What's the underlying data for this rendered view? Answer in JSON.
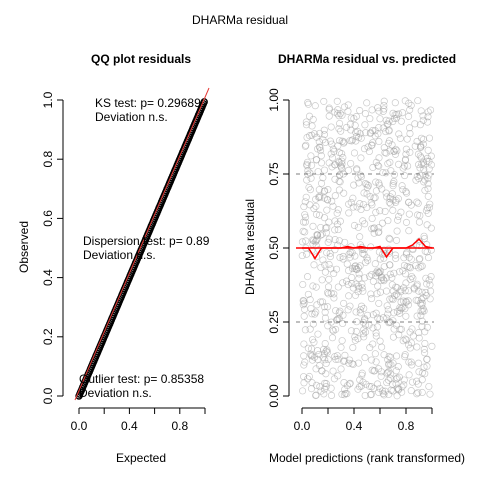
{
  "figure": {
    "title": "DHARMa residual"
  },
  "chart_data": [
    {
      "type": "scatter",
      "title": "QQ plot residuals",
      "xlabel": "Expected",
      "ylabel": "Observed",
      "xlim": [
        0,
        1
      ],
      "ylim": [
        0,
        1
      ],
      "x_ticks": [
        "0.0",
        "0.4",
        "0.8"
      ],
      "y_ticks": [
        "0.0",
        "0.2",
        "0.4",
        "0.6",
        "0.8",
        "1.0"
      ],
      "series": [
        {
          "kind": "points",
          "color": "#000000",
          "x": [
            0.0,
            0.1,
            0.2,
            0.3,
            0.4,
            0.5,
            0.6,
            0.7,
            0.8,
            0.9,
            1.0
          ],
          "y": [
            0.0,
            0.1,
            0.2,
            0.3,
            0.4,
            0.5,
            0.6,
            0.7,
            0.8,
            0.9,
            1.0
          ]
        },
        {
          "kind": "reference-line",
          "color": "#e53935",
          "x": [
            0,
            1
          ],
          "y": [
            0,
            1
          ]
        }
      ],
      "annotations": [
        {
          "lines": [
            "KS test: p= 0.29689",
            "Deviation  n.s."
          ]
        },
        {
          "lines": [
            "Dispersion test: p= 0.89",
            "Deviation  n.s."
          ]
        },
        {
          "lines": [
            "Outlier test: p= 0.85358",
            "Deviation  n.s."
          ]
        }
      ]
    },
    {
      "type": "scatter",
      "title": "DHARMa residual vs. predicted",
      "xlabel": "Model predictions (rank transformed)",
      "ylabel": "DHARMa residual",
      "xlim": [
        0,
        1
      ],
      "ylim": [
        0,
        1
      ],
      "x_ticks": [
        "0.0",
        "0.4",
        "0.8"
      ],
      "y_ticks": [
        "0.00",
        "0.25",
        "0.50",
        "0.75",
        "1.00"
      ],
      "point_color": "#9e9e9e",
      "dashed_reference_y": [
        0.25,
        0.5,
        0.75
      ],
      "quantile_curves": [
        {
          "quantile": 0.5,
          "color": "#ff0000",
          "x": [
            0.0,
            0.05,
            0.1,
            0.15,
            0.2,
            0.25,
            0.3,
            0.35,
            0.4,
            0.45,
            0.5,
            0.55,
            0.6,
            0.65,
            0.7,
            0.75,
            0.8,
            0.85,
            0.9,
            0.95,
            1.0
          ],
          "y": [
            0.5,
            0.5,
            0.465,
            0.5,
            0.5,
            0.5,
            0.5,
            0.505,
            0.5,
            0.505,
            0.5,
            0.5,
            0.505,
            0.47,
            0.5,
            0.5,
            0.5,
            0.51,
            0.53,
            0.505,
            0.5
          ]
        }
      ]
    }
  ]
}
